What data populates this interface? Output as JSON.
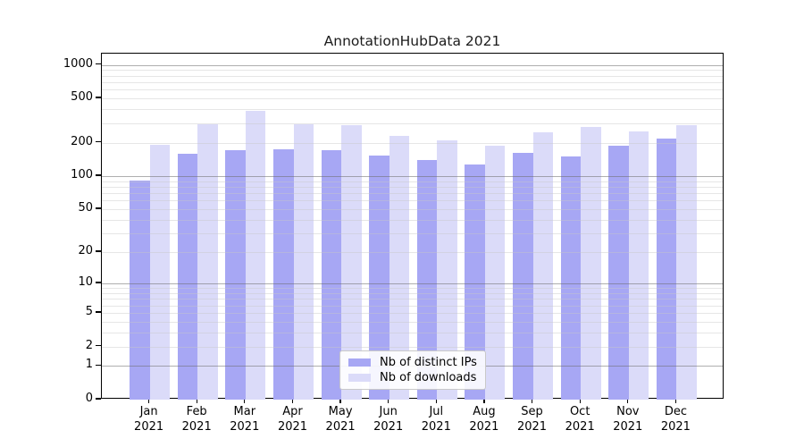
{
  "chart_data": {
    "type": "bar",
    "title": "AnnotationHubData 2021",
    "categories": [
      "Jan",
      "Feb",
      "Mar",
      "Apr",
      "May",
      "Jun",
      "Jul",
      "Aug",
      "Sep",
      "Oct",
      "Nov",
      "Dec"
    ],
    "year_label": "2021",
    "series": [
      {
        "name": "Nb of distinct IPs",
        "color": "#a7a7f4",
        "values": [
          91,
          158,
          170,
          173,
          171,
          152,
          140,
          126,
          163,
          150,
          188,
          217
        ]
      },
      {
        "name": "Nb of downloads",
        "color": "#dbdbf9",
        "values": [
          191,
          291,
          390,
          291,
          286,
          231,
          209,
          188,
          249,
          277,
          254,
          288
        ]
      }
    ],
    "xlabel": "",
    "ylabel": "",
    "yscale": "symlog",
    "y_ticks": [
      0,
      1,
      2,
      5,
      10,
      20,
      50,
      100,
      200,
      500,
      1000
    ],
    "ylim": [
      0,
      1270
    ],
    "grid": {
      "major_at": [
        1,
        10,
        100,
        1000
      ],
      "minor_multiples": [
        2,
        3,
        4,
        5,
        6,
        7,
        8,
        9
      ],
      "minor_decades": [
        1,
        10,
        100
      ]
    },
    "legend_position": "bottom-center"
  },
  "colors": {
    "background": "#ffffff",
    "axis": "#000000",
    "major_grid": "#afafaf",
    "minor_grid": "#e6e6e6",
    "title_text": "#1c1c1c"
  }
}
